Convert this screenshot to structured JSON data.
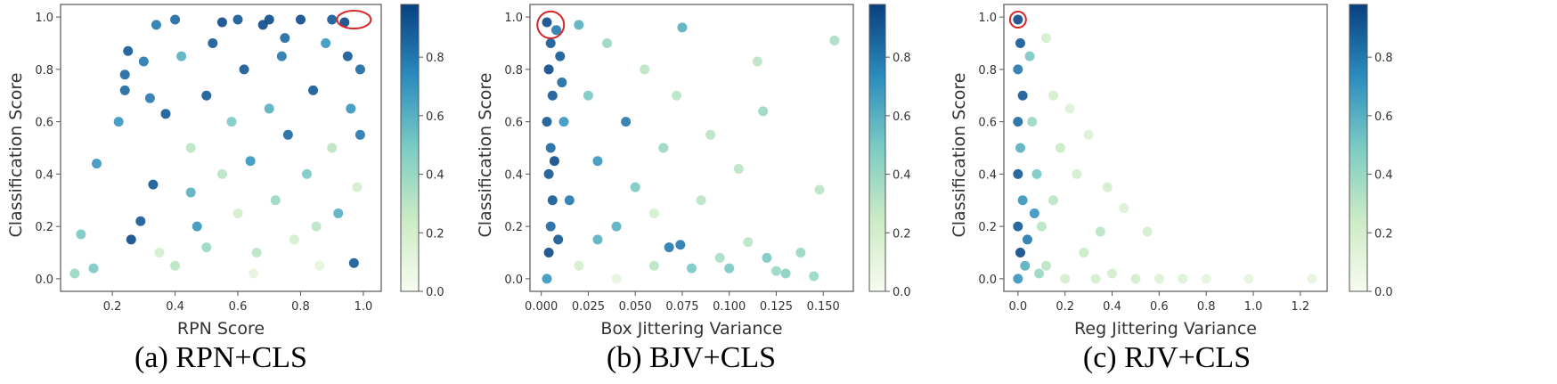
{
  "colors": {
    "cmap": [
      "#f7fcf0",
      "#ccebc5",
      "#7bccc4",
      "#2b8cbe",
      "#084081"
    ],
    "highlight": "#d62728",
    "axis": "#555555"
  },
  "chart_data": [
    {
      "type": "scatter",
      "caption": "(a) RPN+CLS",
      "xlabel": "RPN Score",
      "ylabel": "Classification Score",
      "xlim": [
        0.035,
        1.057
      ],
      "ylim": [
        -0.048,
        1.048
      ],
      "xticks": [
        0.2,
        0.4,
        0.6,
        0.8,
        1.0
      ],
      "xtick_labels": [
        "0.2",
        "0.4",
        "0.6",
        "0.8",
        "1.0"
      ],
      "yticks": [
        0,
        0.2,
        0.4,
        0.6,
        0.8,
        1.0
      ],
      "ytick_labels": [
        "0.0",
        "0.2",
        "0.4",
        "0.6",
        "0.8",
        "1.0"
      ],
      "colorbar": {
        "range": [
          0,
          0.98
        ],
        "ticks": [
          0,
          0.2,
          0.4,
          0.6,
          0.8
        ],
        "labels": [
          "0.0",
          "0.2",
          "0.4",
          "0.6",
          "0.8"
        ]
      },
      "highlight": [
        0.97,
        0.99
      ],
      "points": [
        [
          0.08,
          0.02,
          0.4
        ],
        [
          0.1,
          0.17,
          0.5
        ],
        [
          0.15,
          0.44,
          0.7
        ],
        [
          0.14,
          0.04,
          0.5
        ],
        [
          0.22,
          0.6,
          0.7
        ],
        [
          0.25,
          0.87,
          0.9
        ],
        [
          0.24,
          0.78,
          0.85
        ],
        [
          0.24,
          0.72,
          0.85
        ],
        [
          0.26,
          0.15,
          0.95
        ],
        [
          0.29,
          0.22,
          0.9
        ],
        [
          0.3,
          0.83,
          0.8
        ],
        [
          0.32,
          0.69,
          0.8
        ],
        [
          0.33,
          0.36,
          0.9
        ],
        [
          0.34,
          0.97,
          0.8
        ],
        [
          0.37,
          0.63,
          0.9
        ],
        [
          0.4,
          0.99,
          0.85
        ],
        [
          0.42,
          0.85,
          0.6
        ],
        [
          0.45,
          0.5,
          0.3
        ],
        [
          0.47,
          0.2,
          0.7
        ],
        [
          0.5,
          0.7,
          0.9
        ],
        [
          0.52,
          0.9,
          0.9
        ],
        [
          0.55,
          0.4,
          0.3
        ],
        [
          0.55,
          0.98,
          0.95
        ],
        [
          0.58,
          0.6,
          0.5
        ],
        [
          0.6,
          0.25,
          0.2
        ],
        [
          0.62,
          0.8,
          0.9
        ],
        [
          0.64,
          0.45,
          0.7
        ],
        [
          0.66,
          0.1,
          0.3
        ],
        [
          0.68,
          0.97,
          0.95
        ],
        [
          0.7,
          0.65,
          0.6
        ],
        [
          0.72,
          0.3,
          0.4
        ],
        [
          0.74,
          0.85,
          0.8
        ],
        [
          0.76,
          0.55,
          0.85
        ],
        [
          0.78,
          0.15,
          0.2
        ],
        [
          0.8,
          0.99,
          0.95
        ],
        [
          0.82,
          0.4,
          0.5
        ],
        [
          0.84,
          0.72,
          0.9
        ],
        [
          0.86,
          0.05,
          0.1
        ],
        [
          0.88,
          0.9,
          0.7
        ],
        [
          0.9,
          0.5,
          0.3
        ],
        [
          0.92,
          0.25,
          0.6
        ],
        [
          0.94,
          0.98,
          0.95
        ],
        [
          0.96,
          0.65,
          0.7
        ],
        [
          0.97,
          0.06,
          0.9
        ],
        [
          0.98,
          0.35,
          0.2
        ],
        [
          0.99,
          0.8,
          0.85
        ],
        [
          0.4,
          0.05,
          0.3
        ],
        [
          0.5,
          0.12,
          0.4
        ],
        [
          0.35,
          0.1,
          0.2
        ],
        [
          0.45,
          0.33,
          0.6
        ],
        [
          0.65,
          0.02,
          0.1
        ],
        [
          0.85,
          0.2,
          0.3
        ],
        [
          0.6,
          0.99,
          0.9
        ],
        [
          0.7,
          0.99,
          0.95
        ],
        [
          0.9,
          0.99,
          0.9
        ],
        [
          0.75,
          0.92,
          0.85
        ],
        [
          0.95,
          0.85,
          0.9
        ],
        [
          0.99,
          0.55,
          0.8
        ]
      ]
    },
    {
      "type": "scatter",
      "caption": "(b) BJV+CLS",
      "xlabel": "Box Jittering Variance",
      "ylabel": "Classification Score",
      "xlim": [
        -0.006,
        0.166
      ],
      "ylim": [
        -0.048,
        1.048
      ],
      "xticks": [
        0,
        0.025,
        0.05,
        0.075,
        0.1,
        0.125,
        0.15
      ],
      "xtick_labels": [
        "0.000",
        "0.025",
        "0.050",
        "0.075",
        "0.100",
        "0.125",
        "0.150"
      ],
      "yticks": [
        0,
        0.2,
        0.4,
        0.6,
        0.8,
        1.0
      ],
      "ytick_labels": [
        "0.0",
        "0.2",
        "0.4",
        "0.6",
        "0.8",
        "1.0"
      ],
      "colorbar": {
        "range": [
          0,
          0.98
        ],
        "ticks": [
          0,
          0.2,
          0.4,
          0.6,
          0.8
        ],
        "labels": [
          "0.0",
          "0.2",
          "0.4",
          "0.6",
          "0.8"
        ]
      },
      "highlight": [
        0.005,
        0.97
      ],
      "points": [
        [
          0.003,
          0.98,
          0.95
        ],
        [
          0.005,
          0.9,
          0.9
        ],
        [
          0.004,
          0.8,
          0.95
        ],
        [
          0.006,
          0.7,
          0.9
        ],
        [
          0.003,
          0.6,
          0.9
        ],
        [
          0.005,
          0.5,
          0.85
        ],
        [
          0.004,
          0.4,
          0.9
        ],
        [
          0.006,
          0.3,
          0.9
        ],
        [
          0.005,
          0.2,
          0.85
        ],
        [
          0.004,
          0.1,
          0.95
        ],
        [
          0.003,
          0.0,
          0.7
        ],
        [
          0.008,
          0.95,
          0.8
        ],
        [
          0.01,
          0.85,
          0.9
        ],
        [
          0.012,
          0.6,
          0.7
        ],
        [
          0.015,
          0.3,
          0.8
        ],
        [
          0.02,
          0.97,
          0.6
        ],
        [
          0.025,
          0.7,
          0.5
        ],
        [
          0.03,
          0.45,
          0.7
        ],
        [
          0.035,
          0.9,
          0.4
        ],
        [
          0.04,
          0.2,
          0.6
        ],
        [
          0.045,
          0.6,
          0.8
        ],
        [
          0.05,
          0.35,
          0.5
        ],
        [
          0.055,
          0.8,
          0.3
        ],
        [
          0.06,
          0.05,
          0.3
        ],
        [
          0.065,
          0.5,
          0.4
        ],
        [
          0.068,
          0.12,
          0.8
        ],
        [
          0.072,
          0.7,
          0.3
        ],
        [
          0.074,
          0.13,
          0.8
        ],
        [
          0.075,
          0.96,
          0.6
        ],
        [
          0.08,
          0.04,
          0.5
        ],
        [
          0.085,
          0.3,
          0.3
        ],
        [
          0.09,
          0.55,
          0.3
        ],
        [
          0.095,
          0.08,
          0.35
        ],
        [
          0.1,
          0.04,
          0.5
        ],
        [
          0.105,
          0.42,
          0.3
        ],
        [
          0.11,
          0.14,
          0.3
        ],
        [
          0.115,
          0.83,
          0.3
        ],
        [
          0.118,
          0.64,
          0.4
        ],
        [
          0.12,
          0.08,
          0.5
        ],
        [
          0.125,
          0.03,
          0.4
        ],
        [
          0.13,
          0.02,
          0.45
        ],
        [
          0.138,
          0.1,
          0.4
        ],
        [
          0.145,
          0.01,
          0.4
        ],
        [
          0.148,
          0.34,
          0.3
        ],
        [
          0.156,
          0.91,
          0.35
        ],
        [
          0.02,
          0.05,
          0.2
        ],
        [
          0.04,
          0.0,
          0.1
        ],
        [
          0.06,
          0.25,
          0.2
        ],
        [
          0.03,
          0.15,
          0.6
        ],
        [
          0.007,
          0.45,
          0.95
        ],
        [
          0.009,
          0.15,
          0.9
        ],
        [
          0.011,
          0.75,
          0.85
        ]
      ]
    },
    {
      "type": "scatter",
      "caption": "(c) RJV+CLS",
      "xlabel": "Reg Jittering Variance",
      "ylabel": "Classification Score",
      "xlim": [
        -0.06,
        1.314
      ],
      "ylim": [
        -0.048,
        1.048
      ],
      "xticks": [
        0,
        0.2,
        0.4,
        0.6,
        0.8,
        1.0,
        1.2
      ],
      "xtick_labels": [
        "0.0",
        "0.2",
        "0.4",
        "0.6",
        "0.8",
        "1.0",
        "1.2"
      ],
      "yticks": [
        0,
        0.2,
        0.4,
        0.6,
        0.8,
        1.0
      ],
      "ytick_labels": [
        "0.0",
        "0.2",
        "0.4",
        "0.6",
        "0.8",
        "1.0"
      ],
      "colorbar": {
        "range": [
          0,
          0.98
        ],
        "ticks": [
          0,
          0.2,
          0.4,
          0.6,
          0.8
        ],
        "labels": [
          "0.0",
          "0.2",
          "0.4",
          "0.6",
          "0.8"
        ]
      },
      "highlight": [
        0.0,
        0.99
      ],
      "points": [
        [
          0.0,
          0.99,
          0.95
        ],
        [
          0.01,
          0.9,
          0.9
        ],
        [
          0.0,
          0.8,
          0.8
        ],
        [
          0.02,
          0.7,
          0.9
        ],
        [
          0.0,
          0.6,
          0.85
        ],
        [
          0.01,
          0.5,
          0.6
        ],
        [
          0.0,
          0.4,
          0.9
        ],
        [
          0.02,
          0.3,
          0.7
        ],
        [
          0.0,
          0.2,
          0.9
        ],
        [
          0.01,
          0.1,
          0.95
        ],
        [
          0.0,
          0.0,
          0.7
        ],
        [
          0.05,
          0.85,
          0.5
        ],
        [
          0.06,
          0.6,
          0.4
        ],
        [
          0.08,
          0.4,
          0.5
        ],
        [
          0.1,
          0.2,
          0.3
        ],
        [
          0.12,
          0.92,
          0.2
        ],
        [
          0.12,
          0.05,
          0.3
        ],
        [
          0.15,
          0.7,
          0.2
        ],
        [
          0.15,
          0.3,
          0.3
        ],
        [
          0.18,
          0.5,
          0.25
        ],
        [
          0.2,
          0.0,
          0.2
        ],
        [
          0.22,
          0.65,
          0.15
        ],
        [
          0.25,
          0.4,
          0.2
        ],
        [
          0.28,
          0.1,
          0.25
        ],
        [
          0.3,
          0.55,
          0.15
        ],
        [
          0.33,
          0.0,
          0.2
        ],
        [
          0.35,
          0.18,
          0.3
        ],
        [
          0.38,
          0.35,
          0.2
        ],
        [
          0.4,
          0.02,
          0.2
        ],
        [
          0.45,
          0.27,
          0.15
        ],
        [
          0.5,
          0.0,
          0.2
        ],
        [
          0.55,
          0.18,
          0.2
        ],
        [
          0.6,
          0.0,
          0.15
        ],
        [
          0.7,
          0.0,
          0.15
        ],
        [
          0.8,
          0.0,
          0.1
        ],
        [
          0.98,
          0.0,
          0.1
        ],
        [
          1.25,
          0.0,
          0.1
        ],
        [
          0.04,
          0.15,
          0.8
        ],
        [
          0.03,
          0.05,
          0.6
        ],
        [
          0.07,
          0.25,
          0.7
        ],
        [
          0.09,
          0.02,
          0.4
        ]
      ]
    }
  ]
}
